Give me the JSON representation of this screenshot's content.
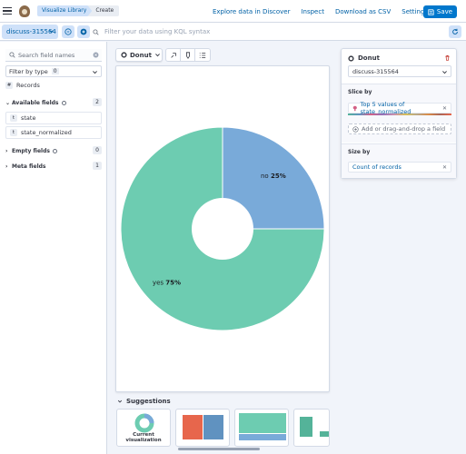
{
  "header": {
    "breadcrumbs": [
      "Visualize Library",
      "Create"
    ],
    "links": [
      "Explore data in Discover",
      "Inspect",
      "Download as CSV",
      "Settings"
    ],
    "save_label": "Save"
  },
  "query": {
    "data_view": "discuss-315564",
    "placeholder": "Filter your data using KQL syntax"
  },
  "sidebar": {
    "search_placeholder": "Search field names",
    "filter_by_type_label": "Filter by type",
    "filter_by_type_count": "0",
    "records_label": "Records",
    "available_label": "Available fields",
    "available_count": "2",
    "available_fields": [
      "state",
      "state_normalized"
    ],
    "empty_label": "Empty fields",
    "empty_count": "0",
    "meta_label": "Meta fields",
    "meta_count": "1"
  },
  "workspace": {
    "chart_type_label": "Donut",
    "suggestions_label": "Suggestions",
    "current_viz_label": "Current visualization"
  },
  "config_panel": {
    "layer_title": "Donut",
    "data_view": "discuss-315564",
    "slice_by_label": "Slice by",
    "slice_by_value": "Top 5 values of state_normalized",
    "add_field_label": "Add or drag-and-drop a field",
    "size_by_label": "Size by",
    "size_by_value": "Count of records"
  },
  "colors": {
    "accent": "#0077cc",
    "slice_yes": "#6dccb1",
    "slice_no": "#79aad9"
  },
  "chart_data": {
    "type": "pie",
    "variant": "donut",
    "categories": [
      "no",
      "yes"
    ],
    "values": [
      25,
      75
    ],
    "labels": [
      "no",
      "yes"
    ],
    "value_labels": [
      "25%",
      "75%"
    ],
    "title": ""
  }
}
